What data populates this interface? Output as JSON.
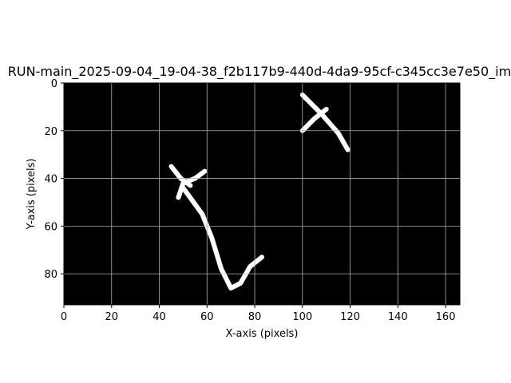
{
  "chart_data": {
    "type": "heatmap",
    "title": "RUN-main_2025-09-04_19-04-38_f2b117b9-440d-4da9-95cf-c345cc3e7e50_im",
    "xlabel": "X-axis (pixels)",
    "ylabel": "Y-axis (pixels)",
    "xlim": [
      0,
      166
    ],
    "ylim": [
      93,
      0
    ],
    "x_ticks": [
      0,
      20,
      40,
      60,
      80,
      100,
      120,
      140,
      160
    ],
    "y_ticks": [
      0,
      20,
      40,
      60,
      80
    ],
    "grid": true,
    "colormap": "gray",
    "background": "#000000",
    "stroke_color": "#ffffff",
    "strokes": [
      {
        "name": "upper-right-stroke-a",
        "points": [
          [
            100,
            5
          ],
          [
            108,
            13
          ],
          [
            115,
            21
          ],
          [
            119,
            28
          ]
        ]
      },
      {
        "name": "upper-right-stroke-b",
        "points": [
          [
            100,
            20
          ],
          [
            105,
            15
          ],
          [
            110,
            11
          ]
        ]
      },
      {
        "name": "left-cross-a",
        "points": [
          [
            45,
            35
          ],
          [
            49,
            40
          ],
          [
            53,
            43
          ]
        ]
      },
      {
        "name": "left-cross-b",
        "points": [
          [
            48,
            48
          ],
          [
            50,
            42
          ],
          [
            55,
            40
          ],
          [
            59,
            37
          ]
        ]
      },
      {
        "name": "long-stroke",
        "points": [
          [
            50,
            44
          ],
          [
            58,
            55
          ],
          [
            62,
            65
          ],
          [
            66,
            78
          ],
          [
            70,
            86
          ],
          [
            74,
            84
          ],
          [
            78,
            77
          ],
          [
            83,
            73
          ]
        ]
      }
    ]
  }
}
